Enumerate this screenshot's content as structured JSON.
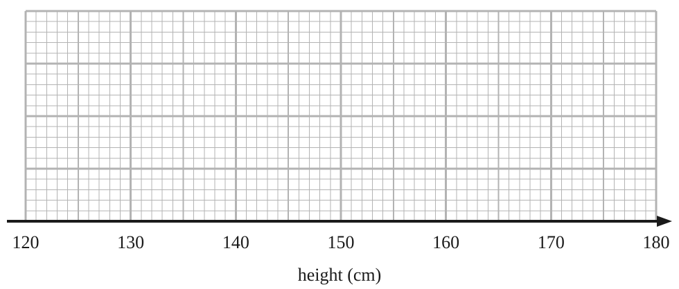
{
  "chart_data": {
    "type": "bar",
    "title": "",
    "xlabel": "height (cm)",
    "ylabel": "",
    "xlim": [
      120,
      180
    ],
    "x_ticks": [
      120,
      130,
      140,
      150,
      160,
      170,
      180
    ],
    "x_tick_labels": [
      "120",
      "130",
      "140",
      "150",
      "160",
      "170",
      "180"
    ],
    "x_minor_step": 1,
    "x_medium_step": 5,
    "y_major_rows": 4,
    "y_minor_per_major": 5,
    "grid": true,
    "series": [],
    "values": [],
    "colors": {
      "grid": "#b3b3b3",
      "axis": "#1a1a1a",
      "text": "#1a1a1a"
    }
  }
}
